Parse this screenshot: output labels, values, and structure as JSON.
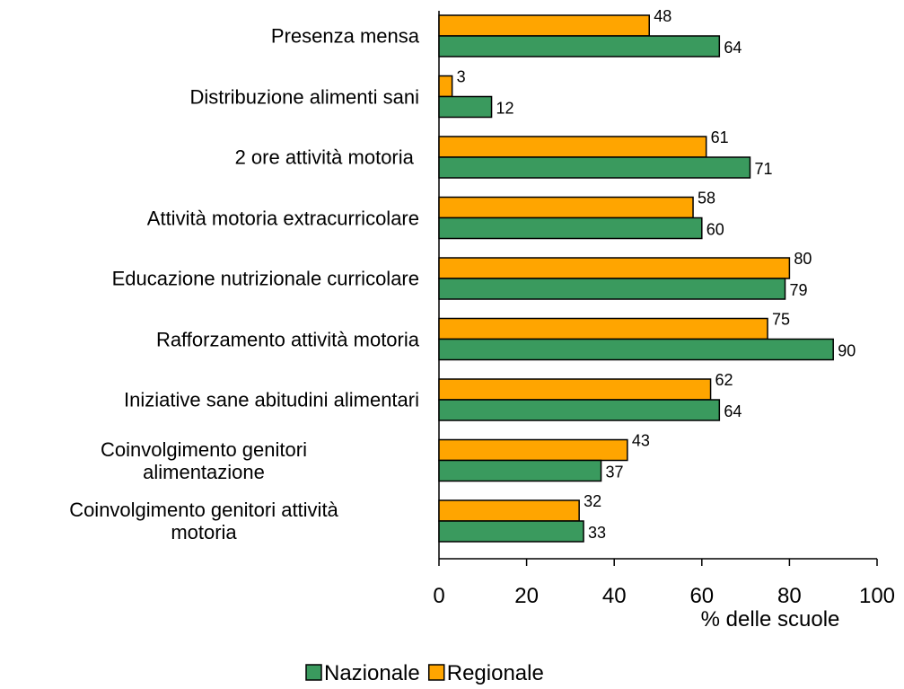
{
  "chart_data": {
    "type": "barh",
    "categories": [
      "Presenza mensa",
      "Distribuzione alimenti sani",
      "2 ore attività motoria ",
      "Attività motoria extracurricolare",
      "Educazione nutrizionale curricolare",
      "Rafforzamento attività motoria",
      "Iniziative sane abitudini alimentari",
      "Coinvolgimento genitori\nalimentazione",
      "Coinvolgimento genitori attività\nmotoria"
    ],
    "series": [
      {
        "name": "Nazionale",
        "color": "#3a9a5e",
        "values": [
          64,
          12,
          71,
          60,
          79,
          90,
          64,
          37,
          33
        ]
      },
      {
        "name": "Regionale",
        "color": "#ffa500",
        "values": [
          48,
          3,
          61,
          58,
          80,
          75,
          62,
          43,
          32
        ]
      }
    ],
    "xlabel": "% delle scuole",
    "xlim": [
      0,
      100
    ],
    "xticks": [
      0,
      20,
      40,
      60,
      80,
      100
    ],
    "legend": "bottom"
  }
}
